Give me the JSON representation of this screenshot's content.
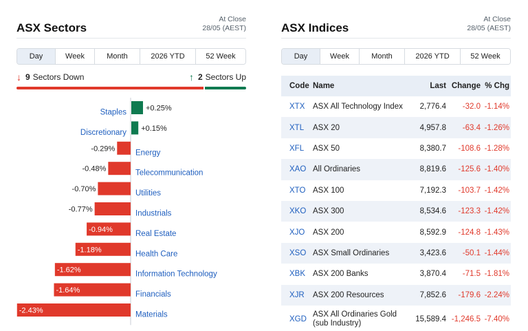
{
  "sectors_panel": {
    "title": "ASX Sectors",
    "close_label": "At Close",
    "close_date": "28/05 (AEST)",
    "tabs": [
      "Day",
      "Week",
      "Month",
      "2026 YTD",
      "52 Week"
    ],
    "active_tab": "Day",
    "down_count": "9",
    "down_label": "Sectors Down",
    "up_count": "2",
    "up_label": "Sectors Up",
    "colors": {
      "negative": "#e0392b",
      "positive": "#0f7a50",
      "link": "#1f5fbf"
    }
  },
  "chart_data": {
    "type": "bar",
    "orientation": "horizontal",
    "categories": [
      "Staples",
      "Discretionary",
      "Energy",
      "Telecommunication",
      "Utilities",
      "Industrials",
      "Real Estate",
      "Health Care",
      "Information Technology",
      "Financials",
      "Materials"
    ],
    "values": [
      0.25,
      0.15,
      -0.29,
      -0.48,
      -0.7,
      -0.77,
      -0.94,
      -1.18,
      -1.62,
      -1.64,
      -2.43
    ],
    "labels": [
      "+0.25%",
      "+0.15%",
      "-0.29%",
      "-0.48%",
      "-0.70%",
      "-0.77%",
      "-0.94%",
      "-1.18%",
      "-1.62%",
      "-1.64%",
      "-2.43%"
    ],
    "unit": "%",
    "grid": false,
    "legend": "none"
  },
  "indices_panel": {
    "title": "ASX Indices",
    "close_label": "At Close",
    "close_date": "28/05 (AEST)",
    "tabs": [
      "Day",
      "Week",
      "Month",
      "2026 YTD",
      "52 Week"
    ],
    "active_tab": "Day",
    "columns": [
      "Code",
      "Name",
      "Last",
      "Change",
      "% Chg"
    ],
    "rows": [
      {
        "code": "XTX",
        "name": "ASX All Technology Index",
        "name2": "",
        "last": "2,776.4",
        "change": "-32.0",
        "pct": "-1.14%"
      },
      {
        "code": "XTL",
        "name": "ASX 20",
        "name2": "",
        "last": "4,957.8",
        "change": "-63.4",
        "pct": "-1.26%"
      },
      {
        "code": "XFL",
        "name": "ASX 50",
        "name2": "",
        "last": "8,380.7",
        "change": "-108.6",
        "pct": "-1.28%"
      },
      {
        "code": "XAO",
        "name": "All Ordinaries",
        "name2": "",
        "last": "8,819.6",
        "change": "-125.6",
        "pct": "-1.40%"
      },
      {
        "code": "XTO",
        "name": "ASX 100",
        "name2": "",
        "last": "7,192.3",
        "change": "-103.7",
        "pct": "-1.42%"
      },
      {
        "code": "XKO",
        "name": "ASX 300",
        "name2": "",
        "last": "8,534.6",
        "change": "-123.3",
        "pct": "-1.42%"
      },
      {
        "code": "XJO",
        "name": "ASX 200",
        "name2": "",
        "last": "8,592.9",
        "change": "-124.8",
        "pct": "-1.43%"
      },
      {
        "code": "XSO",
        "name": "ASX Small Ordinaries",
        "name2": "",
        "last": "3,423.6",
        "change": "-50.1",
        "pct": "-1.44%"
      },
      {
        "code": "XBK",
        "name": "ASX 200 Banks",
        "name2": "",
        "last": "3,870.4",
        "change": "-71.5",
        "pct": "-1.81%"
      },
      {
        "code": "XJR",
        "name": "ASX 200 Resources",
        "name2": "",
        "last": "7,852.6",
        "change": "-179.6",
        "pct": "-2.24%"
      },
      {
        "code": "XGD",
        "name": "ASX All Ordinaries Gold",
        "name2": "(sub Industry)",
        "last": "15,589.4",
        "change": "-1,246.5",
        "pct": "-7.40%"
      }
    ]
  }
}
